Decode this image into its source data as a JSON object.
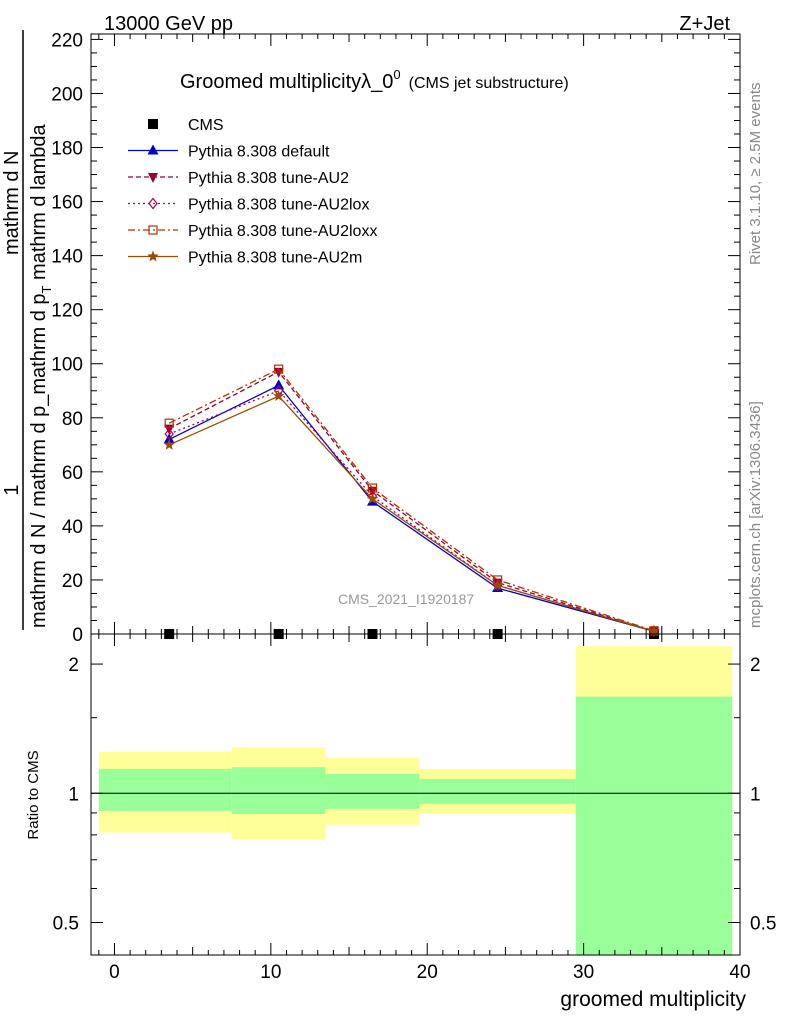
{
  "header": {
    "left": "13000 GeV pp",
    "right": "Z+Jet"
  },
  "title": {
    "main": "Groomed multiplicityλ_0",
    "superscript": "0",
    "sub": "(CMS jet substructure)"
  },
  "side_labels": {
    "rivet": "Rivet 3.1.10, ≥ 2.5M events",
    "mcplots": "mcplots.cern.ch [arXiv:1306.3436]"
  },
  "watermark": "CMS_2021_I1920187",
  "ylabel": {
    "numerator": "1",
    "den_line1": "mathrm d N / mathrm d p_mathrm d p",
    "den_sub": "T",
    "den_line2": " mathrm d lambda",
    "num_line": "mathrm d N"
  },
  "ylabel_raw": "1 / (mathrm d N / mathrm d p_mathrm d p_T mathrm d lambda) · mathrm dN",
  "ratio_ylabel": "Ratio to CMS",
  "xlabel": "groomed multiplicity",
  "colors": {
    "data": "#000000",
    "default": "#0000cc",
    "au2": "#990033",
    "au2lox": "#b3004d",
    "au2loxx": "#b33000",
    "au2m": "#994d00",
    "band_outer": "#ffff99",
    "band_inner": "#99ff99"
  },
  "chart_data": [
    {
      "type": "line",
      "xlim": [
        -1.5,
        40
      ],
      "ylim": [
        0,
        222
      ],
      "x_ticks": [
        0,
        10,
        20,
        30,
        40
      ],
      "y_ticks": [
        0,
        20,
        40,
        60,
        80,
        100,
        120,
        140,
        160,
        180,
        200,
        220
      ],
      "y_tick_labels": [
        "0",
        "20",
        "40",
        "60",
        "80",
        "100",
        "120",
        "140",
        "160",
        "180",
        "200",
        "220"
      ],
      "x": [
        3.5,
        10.5,
        16.5,
        24.5,
        34.5
      ],
      "series": [
        {
          "name": "CMS",
          "key": "data",
          "marker": "square",
          "dash": "",
          "values": [
            0,
            0,
            0,
            0,
            0
          ]
        },
        {
          "name": "Pythia 8.308 default",
          "key": "default",
          "marker": "triangle-up",
          "dash": "",
          "values": [
            72,
            92,
            49,
            17,
            1
          ]
        },
        {
          "name": "Pythia 8.308 tune-AU2",
          "key": "au2",
          "marker": "triangle-down",
          "dash": "5,3",
          "values": [
            76,
            97,
            53,
            19,
            1
          ]
        },
        {
          "name": "Pythia 8.308 tune-AU2lox",
          "key": "au2lox",
          "marker": "diamond",
          "dash": "2,3",
          "values": [
            74,
            90,
            51,
            18,
            1
          ]
        },
        {
          "name": "Pythia 8.308 tune-AU2loxx",
          "key": "au2loxx",
          "marker": "open-square",
          "dash": "7,3,2,3",
          "values": [
            78,
            98,
            54,
            20,
            1.2
          ]
        },
        {
          "name": "Pythia 8.308 tune-AU2m",
          "key": "au2m",
          "marker": "star",
          "dash": "",
          "values": [
            70,
            88,
            50,
            18,
            1
          ]
        }
      ]
    },
    {
      "type": "area",
      "scale": "log",
      "ylim": [
        0.42,
        2.35
      ],
      "y_ticks": [
        0.5,
        1,
        2
      ],
      "y_tick_labels": [
        "0.5",
        "1",
        "2"
      ],
      "reference": 1,
      "bins": [
        {
          "x0": -1,
          "x1": 7.5,
          "outer": [
            0.81,
            1.25
          ],
          "inner": [
            0.91,
            1.14
          ]
        },
        {
          "x0": 7.5,
          "x1": 13.5,
          "outer": [
            0.78,
            1.28
          ],
          "inner": [
            0.895,
            1.15
          ]
        },
        {
          "x0": 13.5,
          "x1": 19.5,
          "outer": [
            0.845,
            1.21
          ],
          "inner": [
            0.92,
            1.11
          ]
        },
        {
          "x0": 19.5,
          "x1": 29.5,
          "outer": [
            0.895,
            1.14
          ],
          "inner": [
            0.945,
            1.08
          ]
        },
        {
          "x0": 29.5,
          "x1": 39.5,
          "outer": [
            0.42,
            2.2
          ],
          "inner": [
            0.42,
            1.68
          ]
        }
      ]
    }
  ]
}
